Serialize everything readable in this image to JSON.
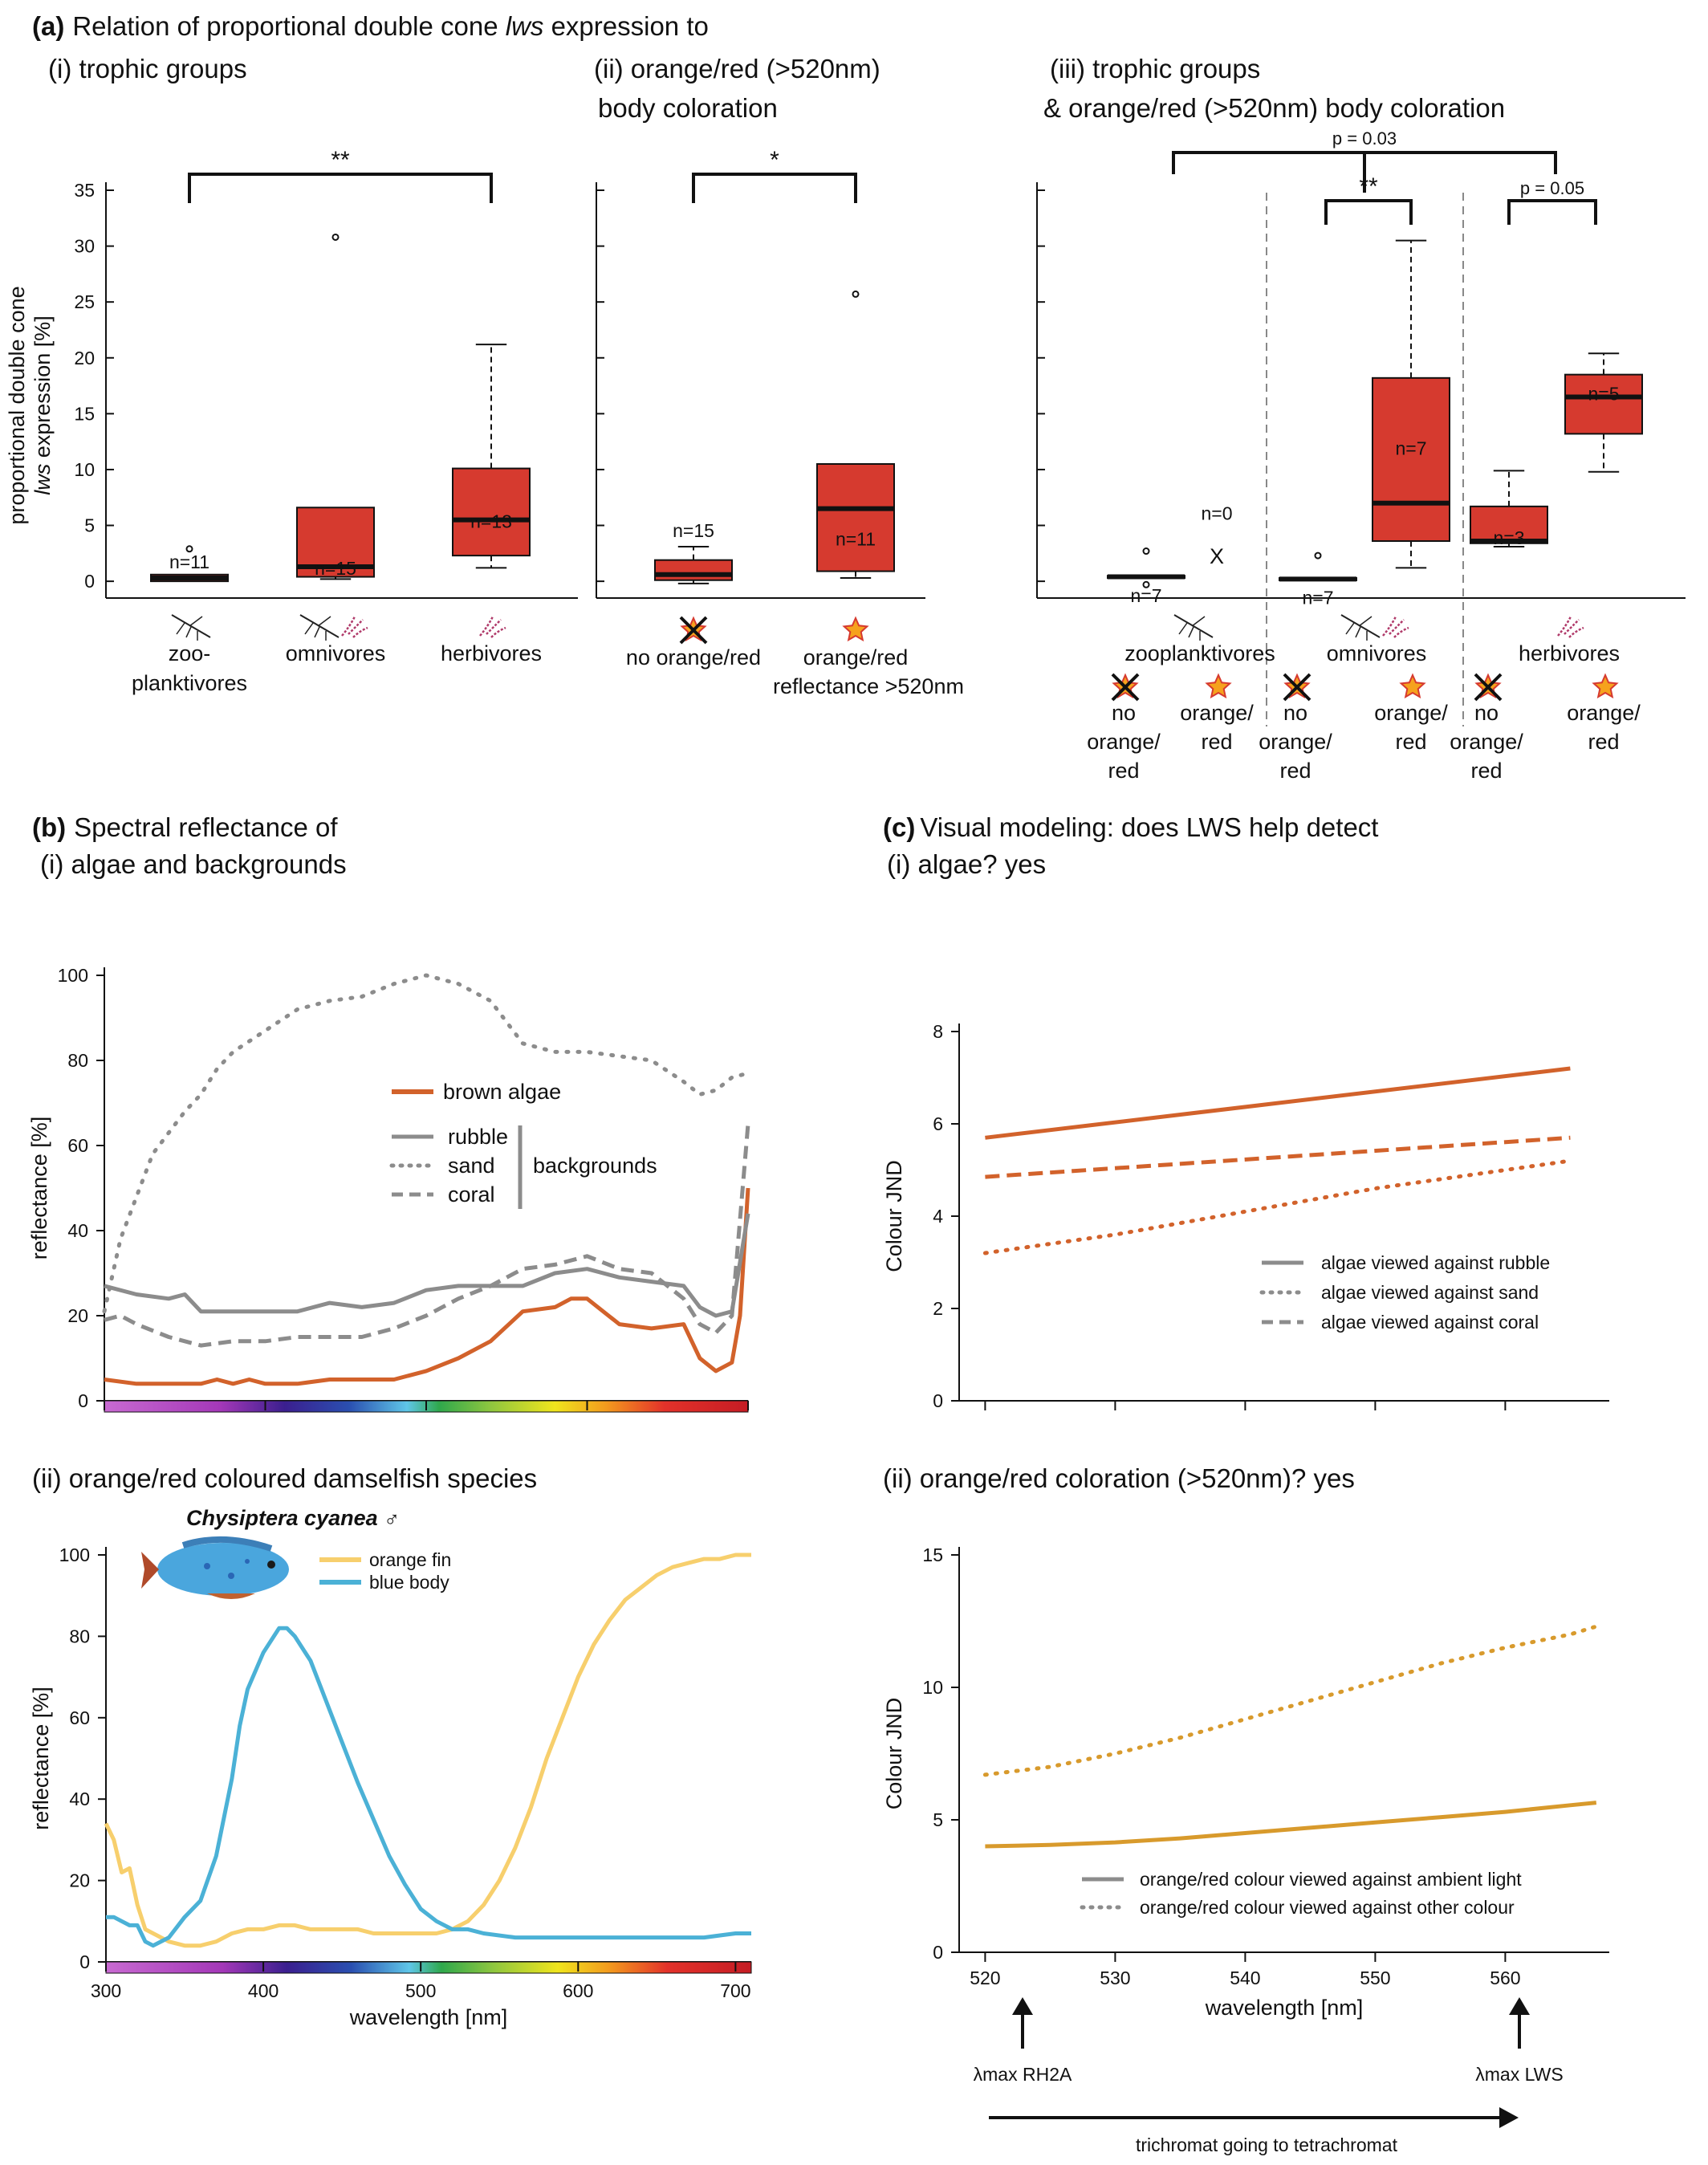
{
  "panel_a": {
    "heading": "Relation of proportional double cone lws expression to",
    "heading_letter": "(a)",
    "heading_pre": "Relation of proportional double cone ",
    "heading_italic": "lws",
    "heading_post": " expression to",
    "sub_i": "(i) trophic groups",
    "sub_ii_line1": "(ii) orange/red (>520nm)",
    "sub_ii_line2": "body coloration",
    "sub_iii_line1": "(iii) trophic groups",
    "sub_iii_line2": "& orange/red (>520nm) body coloration",
    "ylabel_line1": "proportional double cone",
    "ylabel_italic": "lws",
    "ylabel_rest": " expression [%]"
  },
  "panel_b": {
    "heading_letter": "(b)",
    "heading_line1": "Spectral reflectance of",
    "heading_line2": "(i) algae and backgrounds",
    "sub_ii": "(ii) orange/red coloured damselfish species",
    "species_name": "Chysiptera cyanea",
    "species_sex": "♂",
    "legend_i": {
      "brown_algae": "brown algae",
      "rubble": "rubble",
      "sand": "sand",
      "coral": "coral",
      "backgrounds": "backgrounds"
    },
    "legend_ii": {
      "orange_fin": "orange fin",
      "blue_body": "blue body"
    }
  },
  "panel_c": {
    "heading_letter": "(c)",
    "heading_line1": "Visual modeling: does LWS help detect",
    "heading_line2": "(i) algae? yes",
    "sub_ii": "(ii) orange/red coloration (>520nm)? yes",
    "legend_i": {
      "rubble": "algae viewed against rubble",
      "sand": "algae viewed against sand",
      "coral": "algae viewed against coral"
    },
    "legend_ii": {
      "ambient": "orange/red colour viewed against ambient light",
      "other": "orange/red colour viewed against other colour"
    },
    "arrow_rh2a": "λmax RH2A",
    "arrow_lws": "λmax LWS",
    "trichromat": "trichromat going to tetrachromat"
  },
  "colors": {
    "box_fill": "#d63a2f",
    "brown_algae": "#d2622b",
    "background_grey": "#8c8c8c",
    "orange_fin": "#f7cf6d",
    "blue_body": "#4bb1d6",
    "c_algae": "#d2622b",
    "c_orange": "#d89a2c"
  },
  "chart_data": [
    {
      "id": "a-i",
      "type": "box",
      "ylabel": "proportional double cone lws expression [%]",
      "ylim": [
        0,
        35
      ],
      "yticks": [
        0,
        5,
        10,
        15,
        20,
        25,
        30,
        35
      ],
      "categories": [
        {
          "label": "zoo-",
          "label2": "planktivores",
          "icon": "mosquito-icon",
          "n": "n=11",
          "whisker_low": 0,
          "q1": 0,
          "median": 0.3,
          "q3": 0.6,
          "whisker_high": 0.6,
          "outliers": [
            2.9
          ]
        },
        {
          "label": "omnivores",
          "icon": "mosquito-algae-icon",
          "n": "n=15",
          "whisker_low": 0.2,
          "q1": 0.4,
          "median": 1.3,
          "q3": 6.6,
          "whisker_high": 6.6,
          "outliers": [
            30.8
          ]
        },
        {
          "label": "herbivores",
          "icon": "algae-icon",
          "n": "n=13",
          "whisker_low": 1.2,
          "q1": 2.3,
          "median": 5.5,
          "q3": 10.1,
          "whisker_high": 21.2,
          "outliers": []
        }
      ],
      "significance": [
        {
          "from": 0,
          "to": 2,
          "label": "**"
        }
      ]
    },
    {
      "id": "a-ii",
      "type": "box",
      "ylim": [
        0,
        35
      ],
      "categories": [
        {
          "label": "no orange/red",
          "icon": "crossed-star-icon",
          "n": "n=15",
          "whisker_low": -0.2,
          "q1": 0.1,
          "median": 0.6,
          "q3": 1.9,
          "whisker_high": 3.1,
          "outliers": []
        },
        {
          "label": "orange/red",
          "label2": "reflectance >520nm",
          "icon": "star-icon",
          "n": "n=11",
          "whisker_low": 0.3,
          "q1": 0.9,
          "median": 6.5,
          "q3": 10.5,
          "whisker_high": 10.5,
          "outliers": [
            25.7
          ]
        }
      ],
      "significance": [
        {
          "from": 0,
          "to": 1,
          "label": "*"
        }
      ]
    },
    {
      "id": "a-iii",
      "type": "box",
      "ylim": [
        0,
        35
      ],
      "groups": [
        {
          "label": "zooplanktivores",
          "icon": "mosquito-icon",
          "sub": [
            {
              "label": "no orange/red",
              "n": "n=7",
              "whisker_low": 0.3,
              "q1": 0.3,
              "median": 0.4,
              "q3": 0.5,
              "whisker_high": 0.5,
              "outliers": [
                2.7,
                -0.3
              ]
            },
            {
              "label": "orange/red",
              "n": "n=0",
              "marker": "X"
            }
          ]
        },
        {
          "label": "omnivores",
          "icon": "mosquito-algae-icon",
          "sub": [
            {
              "label": "no orange/red",
              "n": "n=7",
              "whisker_low": 0.1,
              "q1": 0.1,
              "median": 0.2,
              "q3": 0.3,
              "whisker_high": 0.3,
              "outliers": [
                2.3
              ]
            },
            {
              "label": "orange/red",
              "n": "n=7",
              "whisker_low": 1.2,
              "q1": 3.6,
              "median": 7.0,
              "q3": 18.2,
              "whisker_high": 30.5,
              "outliers": []
            }
          ]
        },
        {
          "label": "herbivores",
          "icon": "algae-icon",
          "sub": [
            {
              "label": "no orange/red",
              "n": "n=3",
              "whisker_low": 3.1,
              "q1": 3.4,
              "median": 3.6,
              "q3": 6.7,
              "whisker_high": 9.9,
              "outliers": []
            },
            {
              "label": "orange/red",
              "n": "n=5",
              "whisker_low": 9.8,
              "q1": 13.2,
              "median": 16.5,
              "q3": 18.5,
              "whisker_high": 20.4,
              "outliers": []
            }
          ]
        }
      ],
      "sub_label_line1": "no",
      "sub_label_line2": "orange/",
      "sub_label_line3": "red",
      "sub_label2_line1": "orange/",
      "sub_label2_line2": "red",
      "significance": [
        {
          "label": "p = 0.03",
          "between": "zooplanktivores vs herbivores"
        },
        {
          "label": "**",
          "between": "omnivores no vs orange/red"
        },
        {
          "label": "p = 0.05",
          "between": "herbivores no vs orange/red"
        }
      ]
    },
    {
      "id": "b-i",
      "type": "line",
      "ylabel": "reflectance [%]",
      "ylim": [
        0,
        100
      ],
      "yticks": [
        0,
        20,
        40,
        60,
        80,
        100
      ],
      "xlim": [
        300,
        700
      ],
      "series": [
        {
          "name": "brown algae",
          "style": "solid",
          "x": [
            300,
            320,
            340,
            360,
            370,
            380,
            390,
            400,
            420,
            440,
            460,
            480,
            500,
            520,
            540,
            560,
            580,
            590,
            600,
            620,
            640,
            660,
            670,
            680,
            690,
            695,
            700
          ],
          "y": [
            5,
            4,
            4,
            4,
            5,
            4,
            5,
            4,
            4,
            5,
            5,
            5,
            7,
            10,
            14,
            21,
            22,
            24,
            24,
            18,
            17,
            18,
            10,
            7,
            9,
            20,
            50
          ]
        },
        {
          "name": "rubble",
          "style": "solid",
          "x": [
            300,
            320,
            340,
            350,
            360,
            380,
            400,
            420,
            440,
            460,
            480,
            500,
            520,
            540,
            560,
            580,
            600,
            620,
            640,
            660,
            670,
            680,
            690,
            700
          ],
          "y": [
            27,
            25,
            24,
            25,
            21,
            21,
            21,
            21,
            23,
            22,
            23,
            26,
            27,
            27,
            27,
            30,
            31,
            29,
            28,
            27,
            22,
            20,
            21,
            44
          ]
        },
        {
          "name": "sand",
          "style": "dotted",
          "x": [
            300,
            310,
            320,
            330,
            340,
            350,
            360,
            370,
            380,
            400,
            420,
            440,
            460,
            480,
            500,
            520,
            540,
            560,
            580,
            600,
            620,
            640,
            660,
            670,
            680,
            690,
            700
          ],
          "y": [
            21,
            38,
            48,
            58,
            63,
            68,
            72,
            78,
            82,
            87,
            92,
            94,
            95,
            98,
            100,
            98,
            94,
            84,
            82,
            82,
            81,
            80,
            75,
            72,
            73,
            76,
            77
          ]
        },
        {
          "name": "coral",
          "style": "dashed",
          "x": [
            300,
            310,
            320,
            340,
            360,
            380,
            400,
            420,
            440,
            460,
            480,
            500,
            520,
            540,
            560,
            580,
            600,
            620,
            640,
            660,
            670,
            680,
            690,
            700
          ],
          "y": [
            19,
            20,
            18,
            15,
            13,
            14,
            14,
            15,
            15,
            15,
            17,
            20,
            24,
            27,
            31,
            32,
            34,
            31,
            30,
            24,
            18,
            16,
            20,
            65
          ]
        }
      ]
    },
    {
      "id": "b-ii",
      "type": "line",
      "xlabel": "wavelength [nm]",
      "ylabel": "reflectance [%]",
      "ylim": [
        0,
        100
      ],
      "yticks": [
        0,
        20,
        40,
        60,
        80,
        100
      ],
      "xticks": [
        300,
        400,
        500,
        600,
        700
      ],
      "xlim": [
        300,
        710
      ],
      "series": [
        {
          "name": "orange fin",
          "x": [
            300,
            305,
            310,
            315,
            320,
            325,
            330,
            335,
            340,
            350,
            360,
            370,
            380,
            390,
            400,
            410,
            420,
            430,
            440,
            450,
            460,
            470,
            480,
            490,
            500,
            510,
            520,
            530,
            540,
            550,
            560,
            570,
            580,
            590,
            600,
            610,
            620,
            630,
            640,
            650,
            660,
            670,
            680,
            690,
            700,
            705,
            710
          ],
          "y": [
            34,
            30,
            22,
            23,
            14,
            8,
            7,
            6,
            5,
            4,
            4,
            5,
            7,
            8,
            8,
            9,
            9,
            8,
            8,
            8,
            8,
            7,
            7,
            7,
            7,
            7,
            8,
            10,
            14,
            20,
            28,
            38,
            50,
            60,
            70,
            78,
            84,
            89,
            92,
            95,
            97,
            98,
            99,
            99,
            100,
            100,
            100
          ]
        },
        {
          "name": "blue body",
          "x": [
            300,
            305,
            310,
            315,
            320,
            325,
            330,
            340,
            350,
            360,
            370,
            380,
            385,
            390,
            400,
            410,
            415,
            420,
            430,
            440,
            450,
            460,
            470,
            480,
            490,
            500,
            510,
            520,
            530,
            540,
            560,
            580,
            600,
            620,
            640,
            660,
            680,
            700,
            710
          ],
          "y": [
            11,
            11,
            10,
            9,
            9,
            5,
            4,
            6,
            11,
            15,
            26,
            45,
            58,
            67,
            76,
            82,
            82,
            80,
            74,
            64,
            54,
            44,
            35,
            26,
            19,
            13,
            10,
            8,
            8,
            7,
            6,
            6,
            6,
            6,
            6,
            6,
            6,
            7,
            7
          ]
        }
      ]
    },
    {
      "id": "c-i",
      "type": "line",
      "ylabel": "Colour JND",
      "ylim": [
        0,
        8
      ],
      "yticks": [
        0,
        2,
        4,
        6,
        8
      ],
      "xlim": [
        518,
        568
      ],
      "series": [
        {
          "name": "algae viewed against rubble",
          "style": "solid",
          "x": [
            520,
            565
          ],
          "y": [
            5.7,
            7.2
          ]
        },
        {
          "name": "algae viewed against sand",
          "style": "dotted",
          "x": [
            520,
            530,
            540,
            550,
            565
          ],
          "y": [
            3.2,
            3.6,
            4.1,
            4.6,
            5.2
          ]
        },
        {
          "name": "algae viewed against coral",
          "style": "dashed",
          "x": [
            520,
            565
          ],
          "y": [
            4.85,
            5.7
          ]
        }
      ]
    },
    {
      "id": "c-ii",
      "type": "line",
      "xlabel": "wavelength [nm]",
      "ylabel": "Colour JND",
      "ylim": [
        0,
        15
      ],
      "yticks": [
        0,
        5,
        10,
        15
      ],
      "xticks": [
        520,
        530,
        540,
        550,
        560
      ],
      "xlim": [
        518,
        568
      ],
      "series": [
        {
          "name": "orange/red colour viewed against ambient light",
          "style": "solid",
          "x": [
            520,
            525,
            530,
            535,
            540,
            545,
            550,
            555,
            560,
            565,
            567
          ],
          "y": [
            4.0,
            4.05,
            4.15,
            4.3,
            4.5,
            4.7,
            4.9,
            5.1,
            5.3,
            5.55,
            5.65
          ]
        },
        {
          "name": "orange/red colour viewed against other colour",
          "style": "dotted",
          "x": [
            520,
            525,
            530,
            535,
            540,
            545,
            550,
            555,
            560,
            565,
            567
          ],
          "y": [
            6.7,
            7.0,
            7.5,
            8.1,
            8.8,
            9.5,
            10.2,
            10.9,
            11.5,
            12.0,
            12.3
          ]
        }
      ]
    }
  ]
}
